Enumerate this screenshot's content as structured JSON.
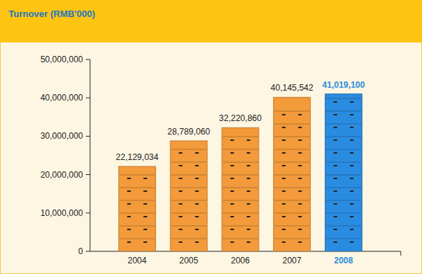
{
  "chart_data": {
    "type": "bar",
    "title": "Turnover (RMB'000)",
    "categories": [
      "2004",
      "2005",
      "2006",
      "2007",
      "2008"
    ],
    "values": [
      22129034,
      28789060,
      32220860,
      40145542,
      41019100
    ],
    "value_labels": [
      "22,129,034",
      "28,789,060",
      "32,220,860",
      "40,145,542",
      "41,019,100"
    ],
    "color": "#f39a3a",
    "colors": [
      "#f39a3a",
      "#f39a3a",
      "#f39a3a",
      "#f39a3a",
      "#2a8ce0"
    ],
    "data_labels": true,
    "grid": false,
    "ylim": [
      0,
      50000000
    ],
    "yticks": [
      0,
      {
        "value": 10000000,
        "label": "10,000,000"
      },
      {
        "value": 20000000,
        "label": "20,000,000"
      },
      {
        "value": 30000000,
        "label": "30,000,000"
      },
      {
        "value": 40000000,
        "label": "40,000,000"
      },
      {
        "value": 50000000,
        "label": "50,000,000"
      }
    ]
  }
}
